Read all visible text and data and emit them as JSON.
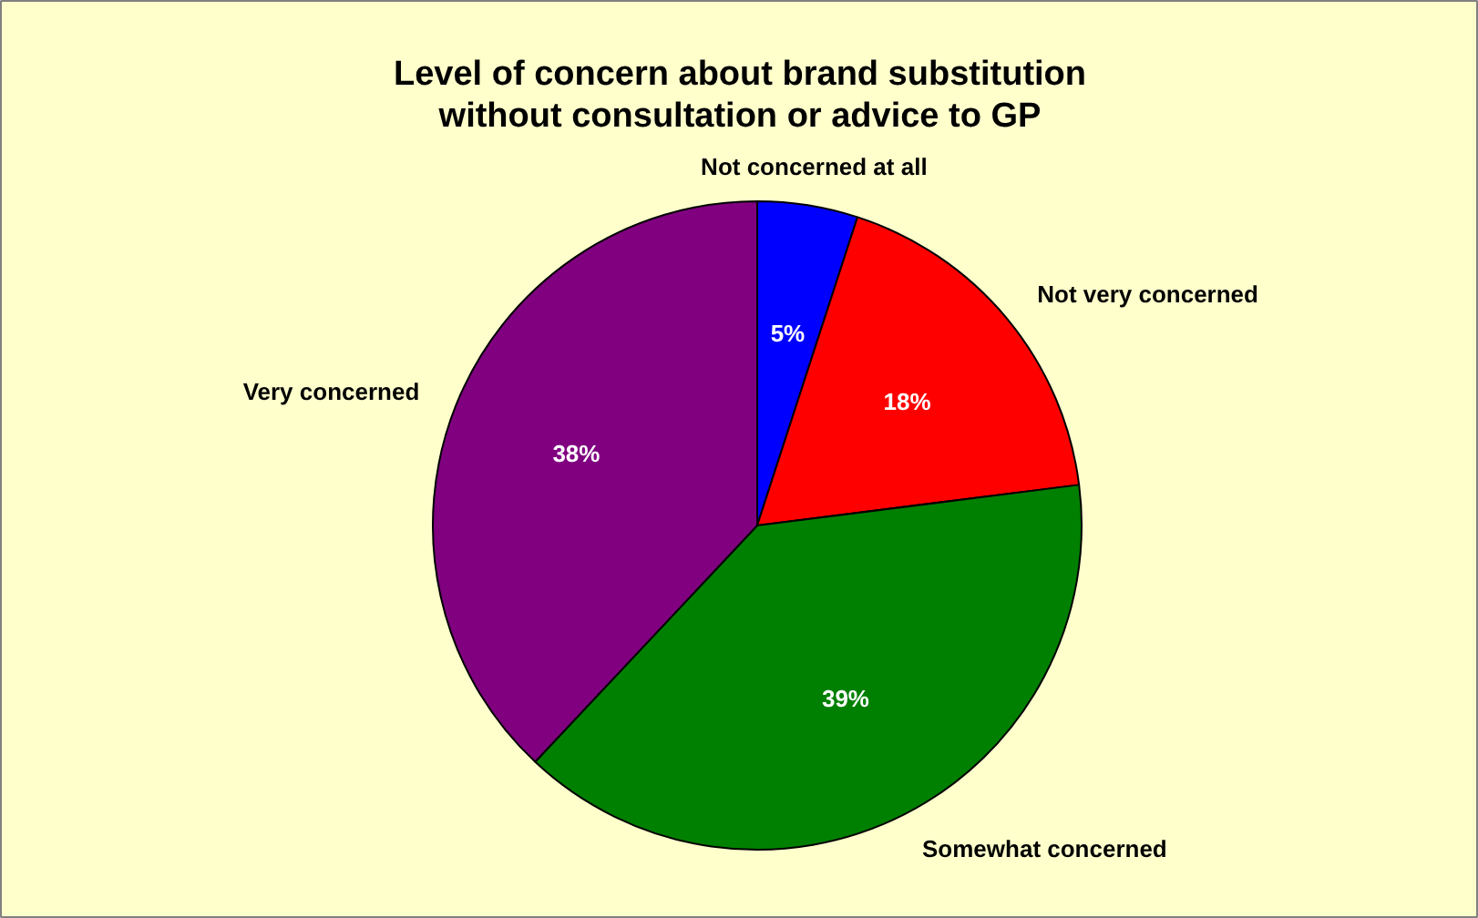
{
  "chart_data": {
    "type": "pie",
    "title": "Level of concern about brand substitution\nwithout consultation or advice to GP",
    "categories": [
      "Not concerned at all",
      "Not very concerned",
      "Somewhat concerned",
      "Very concerned"
    ],
    "values": [
      5,
      18,
      39,
      38
    ],
    "colors": [
      "#0000ff",
      "#ff0000",
      "#008000",
      "#800080"
    ],
    "value_labels": [
      "5%",
      "18%",
      "39%",
      "38%"
    ]
  }
}
